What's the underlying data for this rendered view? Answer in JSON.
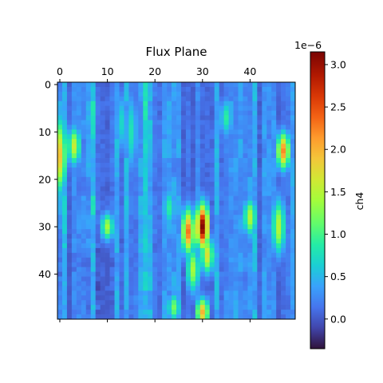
{
  "chart_data": {
    "type": "heatmap",
    "title": "Flux Plane",
    "colormap": "turbo",
    "rows": 50,
    "cols": 50,
    "xlim": [
      -0.5,
      49.5
    ],
    "ylim": [
      49.5,
      -0.5
    ],
    "x_ticks": [
      0,
      10,
      20,
      30,
      40
    ],
    "y_ticks": [
      0,
      10,
      20,
      30,
      40
    ],
    "x_tick_position": "top",
    "colorbar": {
      "label": "ch4",
      "min": -3.5e-07,
      "max": 3.15e-06,
      "ticks": [
        0.0,
        0.5,
        1.0,
        1.5,
        2.0,
        2.5,
        3.0
      ],
      "tick_labels": [
        "0.0",
        "0.5",
        "1.0",
        "1.5",
        "2.0",
        "2.5",
        "3.0"
      ],
      "offset_text": "1e−6"
    },
    "value_unit_scale": 1e-06,
    "features": [
      {
        "col": 0,
        "row_center": 15,
        "row_width": 8,
        "value": 1.9
      },
      {
        "col": 3,
        "row_center": 13,
        "row_width": 4,
        "value": 1.6
      },
      {
        "col": 10,
        "row_center": 30,
        "row_width": 3,
        "value": 1.4
      },
      {
        "col": 13,
        "row_center": 8,
        "row_width": 6,
        "value": 0.7
      },
      {
        "col": 15,
        "row_center": 10,
        "row_width": 8,
        "value": 0.8
      },
      {
        "col": 27,
        "row_center": 31,
        "row_width": 5,
        "value": 2.3
      },
      {
        "col": 28,
        "row_center": 39,
        "row_width": 5,
        "value": 1.4
      },
      {
        "col": 30,
        "row_center": 30,
        "row_width": 5,
        "value": 3.1
      },
      {
        "col": 30,
        "row_center": 48,
        "row_width": 3,
        "value": 2.0
      },
      {
        "col": 31,
        "row_center": 36,
        "row_width": 4,
        "value": 1.7
      },
      {
        "col": 35,
        "row_center": 7,
        "row_width": 4,
        "value": 0.9
      },
      {
        "col": 40,
        "row_center": 28,
        "row_width": 4,
        "value": 1.5
      },
      {
        "col": 46,
        "row_center": 30,
        "row_width": 6,
        "value": 1.5
      },
      {
        "col": 47,
        "row_center": 14,
        "row_width": 4,
        "value": 2.2
      },
      {
        "col": 24,
        "row_center": 47,
        "row_width": 3,
        "value": 1.2
      },
      {
        "col": 23,
        "row_center": 26,
        "row_width": 4,
        "value": 0.9
      }
    ]
  }
}
